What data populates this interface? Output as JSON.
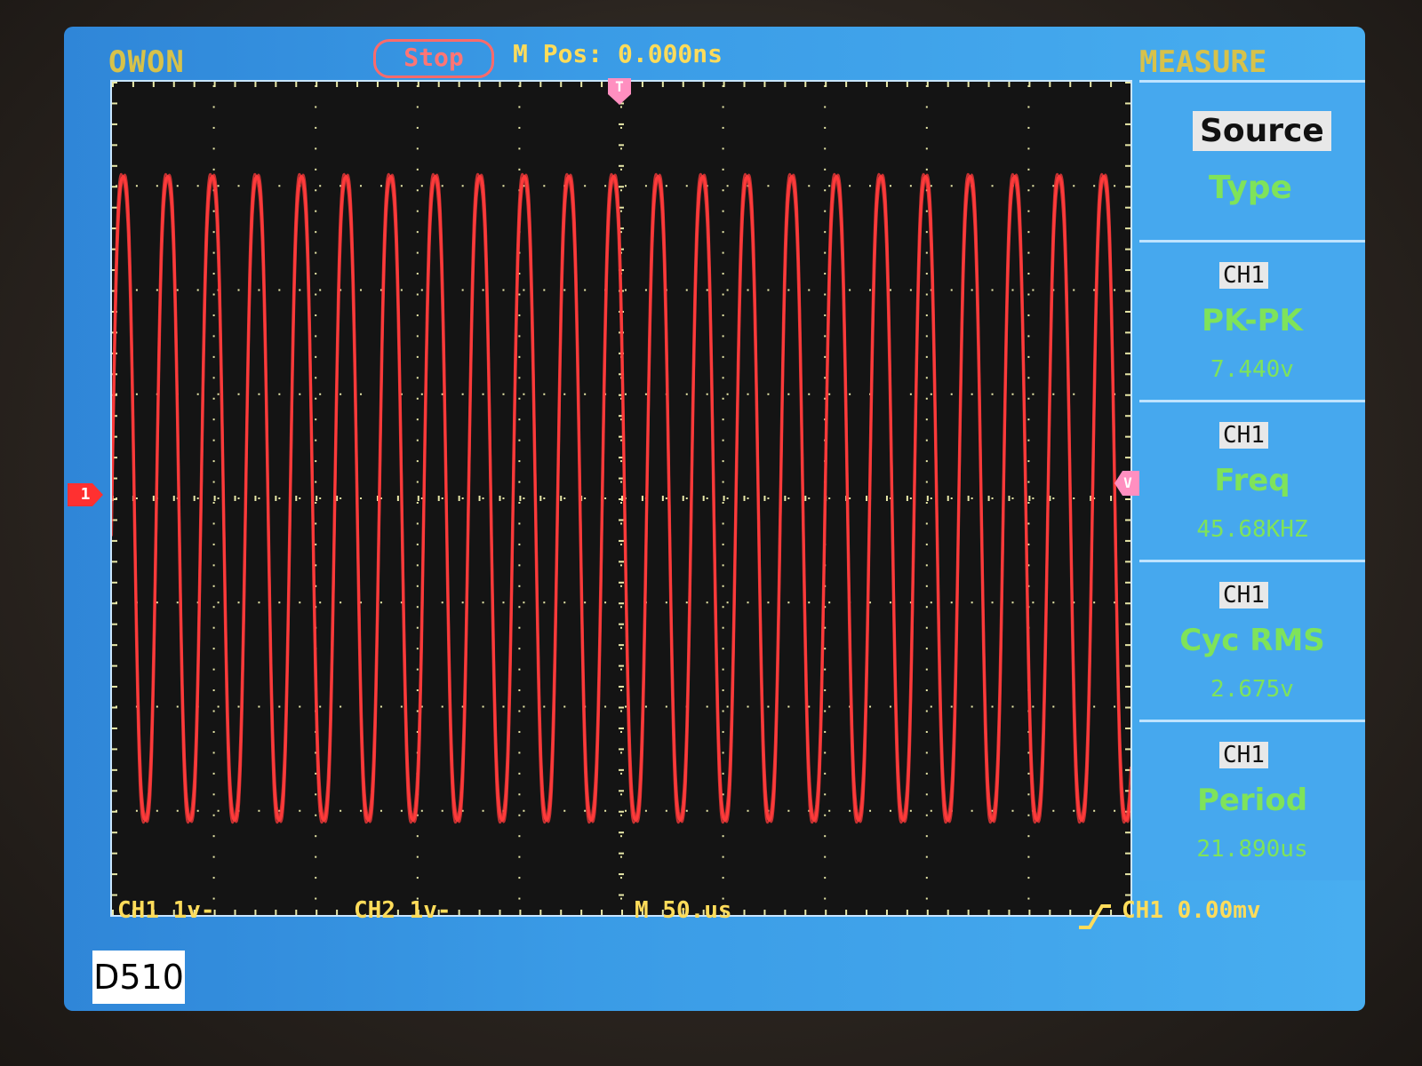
{
  "header": {
    "brand": "OWON",
    "run_state": "Stop",
    "m_pos": "M Pos: 0.000ns",
    "menu_title": "MEASURE"
  },
  "markers": {
    "trigger_position": "T",
    "ch1_ground": "1",
    "trigger_level": "V"
  },
  "menu": {
    "source_label": "Source",
    "type_label": "Type",
    "measurements": [
      {
        "channel": "CH1",
        "name": "PK-PK",
        "value": "7.440v"
      },
      {
        "channel": "CH1",
        "name": "Freq",
        "value": "45.68KHZ"
      },
      {
        "channel": "CH1",
        "name": "Cyc RMS",
        "value": "2.675v"
      },
      {
        "channel": "CH1",
        "name": "Period",
        "value": "21.890us"
      }
    ]
  },
  "status": {
    "ch1": "CH1 1v-",
    "ch2": "CH2 1v-",
    "timebase": "M 50.us",
    "trigger": "CH1 0.00mv"
  },
  "photo_tag": "D510",
  "colors": {
    "trace": "#ff3b3b",
    "screen_blue": "#3a9be6",
    "text_yellow": "#ffdc5a",
    "text_green": "#7fe35a"
  }
}
